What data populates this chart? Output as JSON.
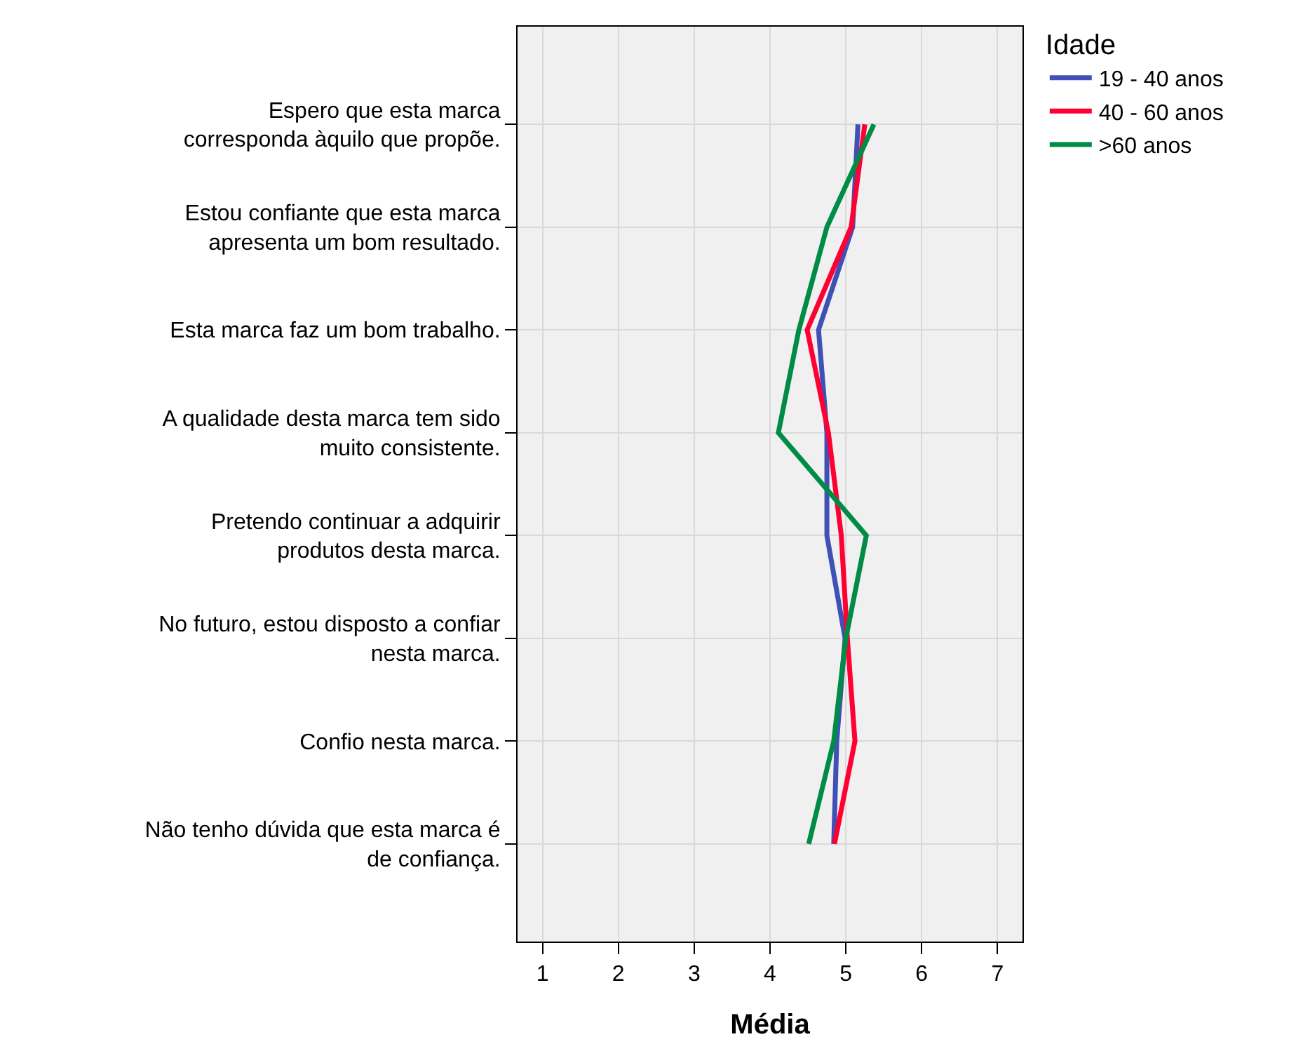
{
  "chart_data": {
    "type": "line",
    "xlabel": "Média",
    "legend_title": "Idade",
    "categories": [
      "Espero que esta marca\ncorresponda àquilo que propõe.",
      "Estou confiante que esta marca\napresenta um bom resultado.",
      "Esta marca faz um bom trabalho.",
      "A qualidade desta marca tem sido\nmuito consistente.",
      "Pretendo continuar a adquirir\nprodutos desta marca.",
      "No futuro, estou disposto a confiar\nnesta marca.",
      "Confio nesta marca.",
      "Não tenho dúvida que esta marca é\nde confiança."
    ],
    "orientation": "horizontal",
    "series": [
      {
        "name": "19 - 40 anos",
        "color": "#3f51b5",
        "values": [
          5.16,
          5.09,
          4.64,
          4.75,
          4.75,
          4.99,
          4.88,
          4.84
        ]
      },
      {
        "name": "40 - 60 anos",
        "color": "#ff0033",
        "values": [
          5.25,
          5.07,
          4.49,
          4.77,
          4.94,
          5.02,
          5.12,
          4.85
        ]
      },
      {
        "name": ">60 anos",
        "color": "#008c45",
        "values": [
          5.37,
          4.75,
          4.38,
          4.11,
          5.27,
          5.0,
          4.84,
          4.51
        ]
      }
    ],
    "xlim": [
      0.67,
      7.33
    ],
    "xticks": [
      1,
      2,
      3,
      4,
      5,
      6,
      7
    ],
    "grid": true,
    "legend": "top right",
    "marker": "none",
    "line_style": "solid"
  }
}
